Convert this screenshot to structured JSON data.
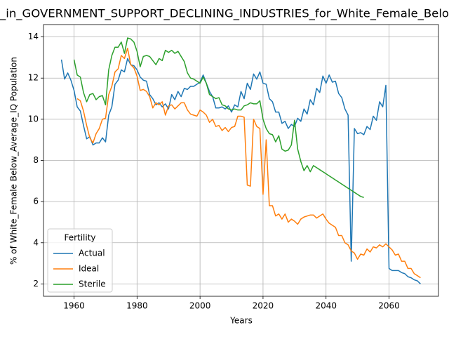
{
  "chart_data": {
    "type": "line",
    "title": "_in_GOVERNMENT_SUPPORT_DECLINING_INDUSTRIES_for_White_Female_Belo",
    "x_label": "Years",
    "y_label": "% of White_Female Below_Average_IQ Population",
    "legend_title": "Fertility",
    "legend": "lower left",
    "grid": true,
    "xlim": [
      1950.3,
      2075.7
    ],
    "ylim": [
      1.4,
      14.6
    ],
    "xticks": [
      1960,
      1980,
      2000,
      2020,
      2040,
      2060
    ],
    "yticks": [
      2,
      4,
      6,
      8,
      10,
      12,
      14
    ],
    "x": [
      1956,
      1957,
      1958,
      1959,
      1960,
      1961,
      1962,
      1963,
      1964,
      1965,
      1966,
      1967,
      1968,
      1969,
      1970,
      1971,
      1972,
      1973,
      1974,
      1975,
      1976,
      1977,
      1978,
      1979,
      1980,
      1981,
      1982,
      1983,
      1984,
      1985,
      1986,
      1987,
      1988,
      1989,
      1990,
      1991,
      1992,
      1993,
      1994,
      1995,
      1996,
      1997,
      1998,
      1999,
      2000,
      2001,
      2002,
      2003,
      2004,
      2005,
      2006,
      2007,
      2008,
      2009,
      2010,
      2011,
      2012,
      2013,
      2014,
      2015,
      2016,
      2017,
      2018,
      2019,
      2020,
      2021,
      2022,
      2023,
      2024,
      2025,
      2026,
      2027,
      2028,
      2029,
      2030,
      2031,
      2032,
      2033,
      2034,
      2035,
      2036,
      2037,
      2038,
      2039,
      2040,
      2041,
      2042,
      2043,
      2044,
      2045,
      2046,
      2047,
      2048,
      2049,
      2050,
      2051,
      2052,
      2053,
      2054,
      2055,
      2056,
      2057,
      2058,
      2059,
      2060,
      2061,
      2062,
      2063,
      2064,
      2065,
      2066,
      2067,
      2068,
      2069,
      2070
    ],
    "series": [
      {
        "name": "Actual",
        "color": "#1f77b4",
        "values": [
          12.9,
          11.95,
          12.25,
          11.9,
          11.4,
          10.6,
          10.4,
          9.7,
          9.05,
          9.15,
          8.75,
          8.85,
          8.85,
          9.1,
          8.9,
          10.2,
          10.6,
          11.7,
          11.9,
          12.4,
          12.3,
          12.95,
          12.65,
          12.6,
          12.4,
          12.05,
          11.9,
          11.85,
          11.2,
          11.0,
          10.7,
          10.8,
          10.6,
          10.75,
          10.5,
          11.2,
          10.95,
          11.35,
          11.1,
          11.5,
          11.45,
          11.6,
          11.6,
          11.7,
          11.8,
          12.15,
          11.75,
          11.35,
          11.1,
          10.55,
          10.55,
          10.6,
          10.5,
          10.65,
          10.35,
          10.7,
          10.6,
          11.35,
          11.0,
          11.75,
          11.45,
          12.2,
          11.95,
          12.3,
          11.75,
          11.7,
          11.0,
          10.85,
          10.35,
          10.35,
          9.8,
          9.9,
          9.55,
          9.75,
          9.65,
          10.05,
          9.9,
          10.5,
          10.25,
          10.95,
          10.7,
          11.5,
          11.3,
          12.1,
          11.75,
          12.15,
          11.8,
          11.85,
          11.25,
          11.05,
          10.5,
          10.2,
          3.1,
          9.55,
          9.3,
          9.35,
          9.25,
          9.65,
          9.5,
          10.15,
          9.95,
          10.85,
          10.6,
          11.65,
          2.75,
          2.65,
          2.65,
          2.65,
          2.55,
          2.5,
          2.35,
          2.3,
          2.2,
          2.15,
          2.0
        ]
      },
      {
        "name": "Ideal",
        "color": "#ff7f0e",
        "values": [
          null,
          null,
          null,
          null,
          null,
          11.0,
          10.9,
          10.4,
          9.7,
          9.1,
          8.85,
          9.3,
          9.55,
          10.0,
          10.05,
          11.2,
          11.6,
          12.3,
          12.45,
          13.1,
          12.95,
          13.45,
          12.65,
          12.5,
          12.1,
          11.4,
          11.45,
          11.35,
          11.1,
          10.55,
          10.8,
          10.7,
          10.85,
          10.2,
          10.65,
          10.7,
          10.5,
          10.65,
          10.8,
          10.8,
          10.45,
          10.25,
          10.2,
          10.15,
          10.45,
          10.35,
          10.2,
          9.85,
          10.0,
          9.65,
          9.7,
          9.45,
          9.6,
          9.4,
          9.6,
          9.65,
          10.15,
          10.15,
          10.1,
          6.8,
          6.75,
          10.0,
          9.65,
          9.55,
          6.35,
          9.0,
          5.8,
          5.8,
          5.3,
          5.4,
          5.15,
          5.4,
          5.0,
          5.15,
          5.05,
          4.9,
          5.15,
          5.25,
          5.3,
          5.35,
          5.35,
          5.2,
          5.3,
          5.4,
          5.15,
          4.95,
          4.85,
          4.75,
          4.35,
          4.35,
          4.0,
          3.9,
          3.6,
          3.5,
          3.2,
          3.45,
          3.4,
          3.7,
          3.55,
          3.8,
          3.75,
          3.9,
          3.8,
          3.95,
          3.8,
          3.65,
          3.4,
          3.45,
          3.1,
          3.1,
          2.75,
          2.75,
          2.5,
          2.4,
          2.3
        ]
      },
      {
        "name": "Sterile",
        "color": "#2ca02c",
        "values": [
          null,
          null,
          null,
          null,
          12.9,
          12.15,
          12.05,
          11.3,
          10.85,
          11.2,
          11.25,
          10.95,
          11.1,
          11.15,
          10.7,
          12.4,
          13.1,
          13.5,
          13.5,
          13.75,
          13.2,
          13.95,
          13.9,
          13.75,
          13.3,
          12.55,
          13.05,
          13.1,
          13.05,
          12.85,
          12.65,
          12.95,
          12.85,
          13.35,
          13.25,
          13.35,
          13.2,
          13.3,
          13.05,
          12.8,
          12.25,
          12.0,
          11.95,
          11.85,
          11.75,
          12.05,
          11.75,
          11.2,
          11.1,
          11.0,
          11.05,
          10.7,
          10.65,
          10.5,
          10.45,
          10.5,
          10.45,
          10.45,
          10.65,
          10.7,
          10.8,
          10.75,
          10.75,
          10.9,
          10.0,
          9.55,
          9.3,
          9.25,
          8.9,
          9.2,
          8.55,
          8.45,
          8.5,
          8.75,
          9.95,
          8.55,
          7.95,
          7.5,
          7.75,
          7.45,
          7.75,
          7.65,
          7.55,
          7.45,
          7.35,
          7.25,
          7.15,
          7.05,
          6.95,
          6.85,
          6.75,
          6.65,
          6.55,
          6.45,
          6.35,
          6.25,
          6.2,
          null,
          null,
          null,
          null,
          null,
          null,
          null,
          null,
          null,
          null,
          null,
          null,
          null,
          null,
          null,
          null,
          null,
          null
        ]
      }
    ]
  }
}
